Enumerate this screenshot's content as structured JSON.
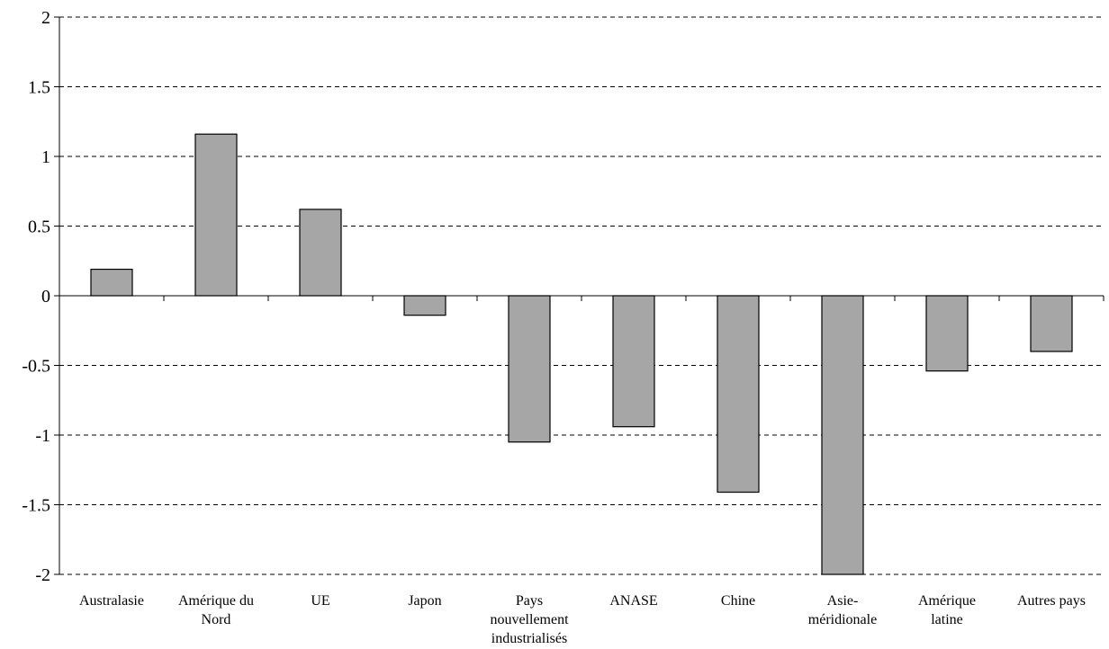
{
  "chart_data": {
    "type": "bar",
    "categories": [
      [
        "Australasie"
      ],
      [
        "Amérique du",
        "Nord"
      ],
      [
        "UE"
      ],
      [
        "Japon"
      ],
      [
        "Pays",
        "nouvellement",
        "industrialisés"
      ],
      [
        "ANASE"
      ],
      [
        "Chine"
      ],
      [
        "Asie-",
        "méridionale"
      ],
      [
        "Amérique",
        "latine"
      ],
      [
        "Autres pays"
      ]
    ],
    "values": [
      0.19,
      1.16,
      0.62,
      -0.14,
      -1.05,
      -0.94,
      -1.41,
      -2.0,
      -0.54,
      -0.4
    ],
    "ylim": [
      -2,
      2
    ],
    "yticks": [
      "2",
      "1.5",
      "1",
      "0.5",
      "0",
      "-0.5",
      "-1",
      "-1.5",
      "-2"
    ],
    "ytick_values": [
      2,
      1.5,
      1,
      0.5,
      0,
      -0.5,
      -1,
      -1.5,
      -2
    ],
    "title": "",
    "xlabel": "",
    "ylabel": "",
    "grid": true,
    "bar_color": "#a6a6a6"
  }
}
